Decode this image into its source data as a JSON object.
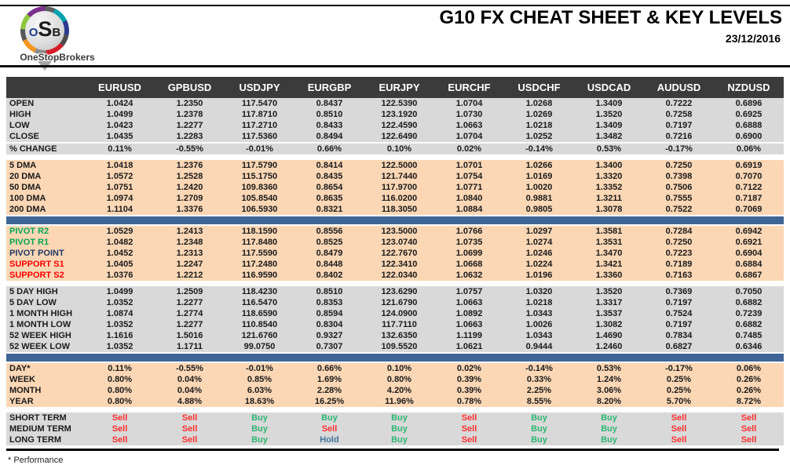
{
  "header": {
    "logo": {
      "acronym_o": "O",
      "acronym_s": "S",
      "acronym_b": "B",
      "wordmark": "OneStopBrokers"
    },
    "title": "G10 FX CHEAT SHEET & KEY LEVELS",
    "date": "23/12/2016"
  },
  "colors": {
    "header_bg": "#3b3b3b",
    "gray_block": "#d9d9d9",
    "peach_block": "#fbd7b5",
    "blue_divider": "#3e6595",
    "pivot_green": "#00a651",
    "pivot_navy": "#1f3864",
    "support_red": "#ff0000",
    "buy_green": "#2db673",
    "sell_red": "#ff2f2f",
    "hold_blue": "#41719c"
  },
  "table": {
    "columns": [
      "EURUSD",
      "GPBUSD",
      "USDJPY",
      "EURGBP",
      "EURJPY",
      "EURCHF",
      "USDCHF",
      "USDCAD",
      "AUDUSD",
      "NZDUSD"
    ],
    "sections": [
      {
        "id": "ohlc",
        "bg": "gray",
        "after": "gap",
        "rows": [
          {
            "label": "OPEN",
            "values": [
              "1.0424",
              "1.2350",
              "117.5470",
              "0.8437",
              "122.5390",
              "1.0704",
              "1.0268",
              "1.3409",
              "0.7222",
              "0.6896"
            ]
          },
          {
            "label": "HIGH",
            "values": [
              "1.0499",
              "1.2378",
              "117.8710",
              "0.8510",
              "123.1920",
              "1.0730",
              "1.0269",
              "1.3520",
              "0.7258",
              "0.6925"
            ]
          },
          {
            "label": "LOW",
            "values": [
              "1.0423",
              "1.2277",
              "117.2710",
              "0.8433",
              "122.4590",
              "1.0663",
              "1.0218",
              "1.3409",
              "0.7197",
              "0.6888"
            ]
          },
          {
            "label": "CLOSE",
            "values": [
              "1.0435",
              "1.2283",
              "117.5360",
              "0.8494",
              "122.6490",
              "1.0704",
              "1.0252",
              "1.3482",
              "0.7216",
              "0.6900"
            ]
          },
          {
            "label": "% CHANGE",
            "separator_above": true,
            "values": [
              "0.11%",
              "-0.55%",
              "-0.01%",
              "0.66%",
              "0.10%",
              "0.02%",
              "-0.14%",
              "0.53%",
              "-0.17%",
              "0.06%"
            ]
          }
        ]
      },
      {
        "id": "moving-averages",
        "bg": "peach",
        "after": "blue",
        "rows": [
          {
            "label": "5 DMA",
            "values": [
              "1.0418",
              "1.2376",
              "117.5790",
              "0.8414",
              "122.5000",
              "1.0701",
              "1.0266",
              "1.3400",
              "0.7250",
              "0.6919"
            ]
          },
          {
            "label": "20 DMA",
            "values": [
              "1.0572",
              "1.2528",
              "115.1750",
              "0.8435",
              "121.7440",
              "1.0754",
              "1.0169",
              "1.3320",
              "0.7398",
              "0.7070"
            ]
          },
          {
            "label": "50 DMA",
            "values": [
              "1.0751",
              "1.2420",
              "109.8360",
              "0.8654",
              "117.9700",
              "1.0771",
              "1.0020",
              "1.3352",
              "0.7506",
              "0.7122"
            ]
          },
          {
            "label": "100 DMA",
            "values": [
              "1.0974",
              "1.2709",
              "105.8540",
              "0.8635",
              "116.0200",
              "1.0840",
              "0.9881",
              "1.3211",
              "0.7555",
              "0.7187"
            ]
          },
          {
            "label": "200 DMA",
            "values": [
              "1.1104",
              "1.3376",
              "106.5930",
              "0.8321",
              "118.3050",
              "1.0884",
              "0.9805",
              "1.3078",
              "0.7522",
              "0.7069"
            ]
          }
        ]
      },
      {
        "id": "pivots",
        "bg": "peach",
        "after": "gap",
        "rows": [
          {
            "label": "PIVOT R2",
            "label_color": "green",
            "values": [
              "1.0529",
              "1.2413",
              "118.1590",
              "0.8556",
              "123.5000",
              "1.0766",
              "1.0297",
              "1.3581",
              "0.7284",
              "0.6942"
            ]
          },
          {
            "label": "PIVOT R1",
            "label_color": "green",
            "values": [
              "1.0482",
              "1.2348",
              "117.8480",
              "0.8525",
              "123.0740",
              "1.0735",
              "1.0274",
              "1.3531",
              "0.7250",
              "0.6921"
            ]
          },
          {
            "label": "PIVOT POINT",
            "label_color": "navy",
            "values": [
              "1.0452",
              "1.2313",
              "117.5590",
              "0.8479",
              "122.7670",
              "1.0699",
              "1.0246",
              "1.3470",
              "0.7223",
              "0.6904"
            ]
          },
          {
            "label": "SUPPORT S1",
            "label_color": "red",
            "values": [
              "1.0405",
              "1.2247",
              "117.2480",
              "0.8448",
              "122.3410",
              "1.0668",
              "1.0224",
              "1.3421",
              "0.7189",
              "0.6884"
            ]
          },
          {
            "label": "SUPPORT S2",
            "label_color": "red",
            "values": [
              "1.0376",
              "1.2212",
              "116.9590",
              "0.8402",
              "122.0340",
              "1.0632",
              "1.0196",
              "1.3360",
              "0.7163",
              "0.6867"
            ]
          }
        ]
      },
      {
        "id": "ranges",
        "bg": "gray",
        "after": "blue",
        "rows": [
          {
            "label": "5 DAY HIGH",
            "values": [
              "1.0499",
              "1.2509",
              "118.4230",
              "0.8510",
              "123.6290",
              "1.0757",
              "1.0320",
              "1.3520",
              "0.7369",
              "0.7050"
            ]
          },
          {
            "label": "5 DAY LOW",
            "values": [
              "1.0352",
              "1.2277",
              "116.5470",
              "0.8353",
              "121.6790",
              "1.0663",
              "1.0218",
              "1.3317",
              "0.7197",
              "0.6882"
            ]
          },
          {
            "label": "1 MONTH HIGH",
            "values": [
              "1.0874",
              "1.2774",
              "118.6590",
              "0.8594",
              "124.0900",
              "1.0892",
              "1.0343",
              "1.3537",
              "0.7524",
              "0.7239"
            ]
          },
          {
            "label": "1 MONTH LOW",
            "values": [
              "1.0352",
              "1.2277",
              "110.8540",
              "0.8304",
              "117.7110",
              "1.0663",
              "1.0026",
              "1.3082",
              "0.7197",
              "0.6882"
            ]
          },
          {
            "label": "52 WEEK HIGH",
            "values": [
              "1.1616",
              "1.5016",
              "121.6760",
              "0.9327",
              "132.6350",
              "1.1199",
              "1.0343",
              "1.4690",
              "0.7834",
              "0.7485"
            ]
          },
          {
            "label": "52 WEEK LOW",
            "values": [
              "1.0352",
              "1.1711",
              "99.0750",
              "0.7307",
              "109.5520",
              "1.0621",
              "0.9444",
              "1.2460",
              "0.6827",
              "0.6346"
            ]
          }
        ]
      },
      {
        "id": "performance",
        "bg": "peach",
        "after": "gap",
        "rows": [
          {
            "label": "DAY*",
            "values": [
              "0.11%",
              "-0.55%",
              "-0.01%",
              "0.66%",
              "0.10%",
              "0.02%",
              "-0.14%",
              "0.53%",
              "-0.17%",
              "0.06%"
            ]
          },
          {
            "label": "WEEK",
            "values": [
              "0.80%",
              "0.04%",
              "0.85%",
              "1.69%",
              "0.80%",
              "0.39%",
              "0.33%",
              "1.24%",
              "0.25%",
              "0.26%"
            ]
          },
          {
            "label": "MONTH",
            "values": [
              "0.80%",
              "0.04%",
              "6.03%",
              "2.28%",
              "4.20%",
              "0.39%",
              "2.25%",
              "3.06%",
              "0.25%",
              "0.26%"
            ]
          },
          {
            "label": "YEAR",
            "values": [
              "0.80%",
              "4.88%",
              "18.63%",
              "16.25%",
              "11.96%",
              "0.78%",
              "8.55%",
              "8.20%",
              "5.70%",
              "8.72%"
            ]
          }
        ]
      },
      {
        "id": "signals",
        "bg": "gray",
        "signal_colors": true,
        "after": null,
        "rows": [
          {
            "label": "SHORT TERM",
            "values": [
              "Sell",
              "Sell",
              "Buy",
              "Buy",
              "Buy",
              "Sell",
              "Buy",
              "Buy",
              "Sell",
              "Sell"
            ]
          },
          {
            "label": "MEDIUM TERM",
            "values": [
              "Sell",
              "Sell",
              "Buy",
              "Sell",
              "Buy",
              "Sell",
              "Buy",
              "Buy",
              "Sell",
              "Sell"
            ]
          },
          {
            "label": "LONG TERM",
            "values": [
              "Sell",
              "Sell",
              "Buy",
              "Hold",
              "Buy",
              "Sell",
              "Buy",
              "Buy",
              "Sell",
              "Sell"
            ]
          }
        ]
      }
    ]
  },
  "footer": {
    "note": "* Performance"
  }
}
